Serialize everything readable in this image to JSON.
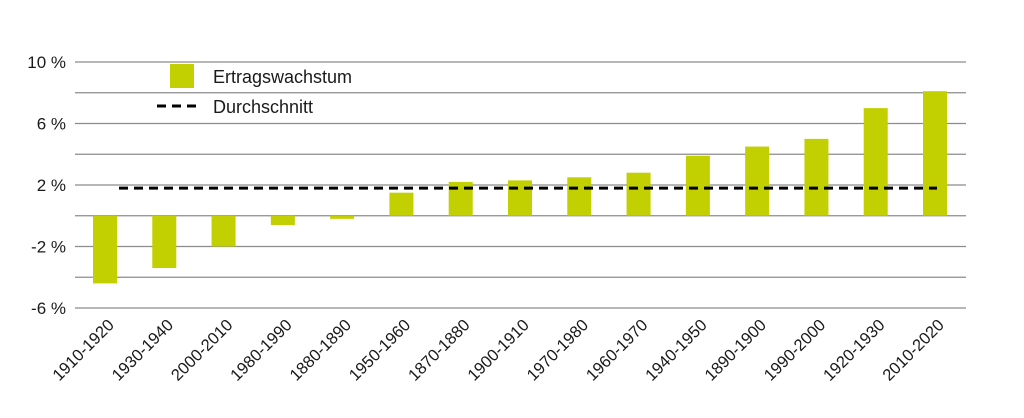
{
  "chart_data": {
    "type": "bar",
    "categories": [
      "1910-1920",
      "1930-1940",
      "2000-2010",
      "1980-1990",
      "1880-1890",
      "1950-1960",
      "1870-1880",
      "1900-1910",
      "1970-1980",
      "1960-1970",
      "1940-1950",
      "1890-1900",
      "1990-2000",
      "1920-1930",
      "2010-2020"
    ],
    "series": [
      {
        "name": "Ertragswachstum",
        "color": "#c2cf00",
        "values": [
          -4.4,
          -3.4,
          -2.0,
          -0.6,
          -0.2,
          1.5,
          2.2,
          2.3,
          2.5,
          2.8,
          3.9,
          4.5,
          5.0,
          7.0,
          8.1
        ]
      }
    ],
    "average": {
      "name": "Durchschnitt",
      "value": 1.8,
      "color": "#000000"
    },
    "ylim": [
      -6,
      10
    ],
    "yticks": [
      10,
      6,
      2,
      -2,
      -6
    ],
    "ytick_labels": [
      "10 %",
      "6 %",
      "2 %",
      "-2 %",
      "-6 %"
    ],
    "gridlines": [
      10,
      8,
      6,
      4,
      2,
      0,
      -2,
      -4,
      -6
    ],
    "grid": true,
    "legend_position": "top-left",
    "title": "",
    "xlabel": "",
    "ylabel": ""
  }
}
